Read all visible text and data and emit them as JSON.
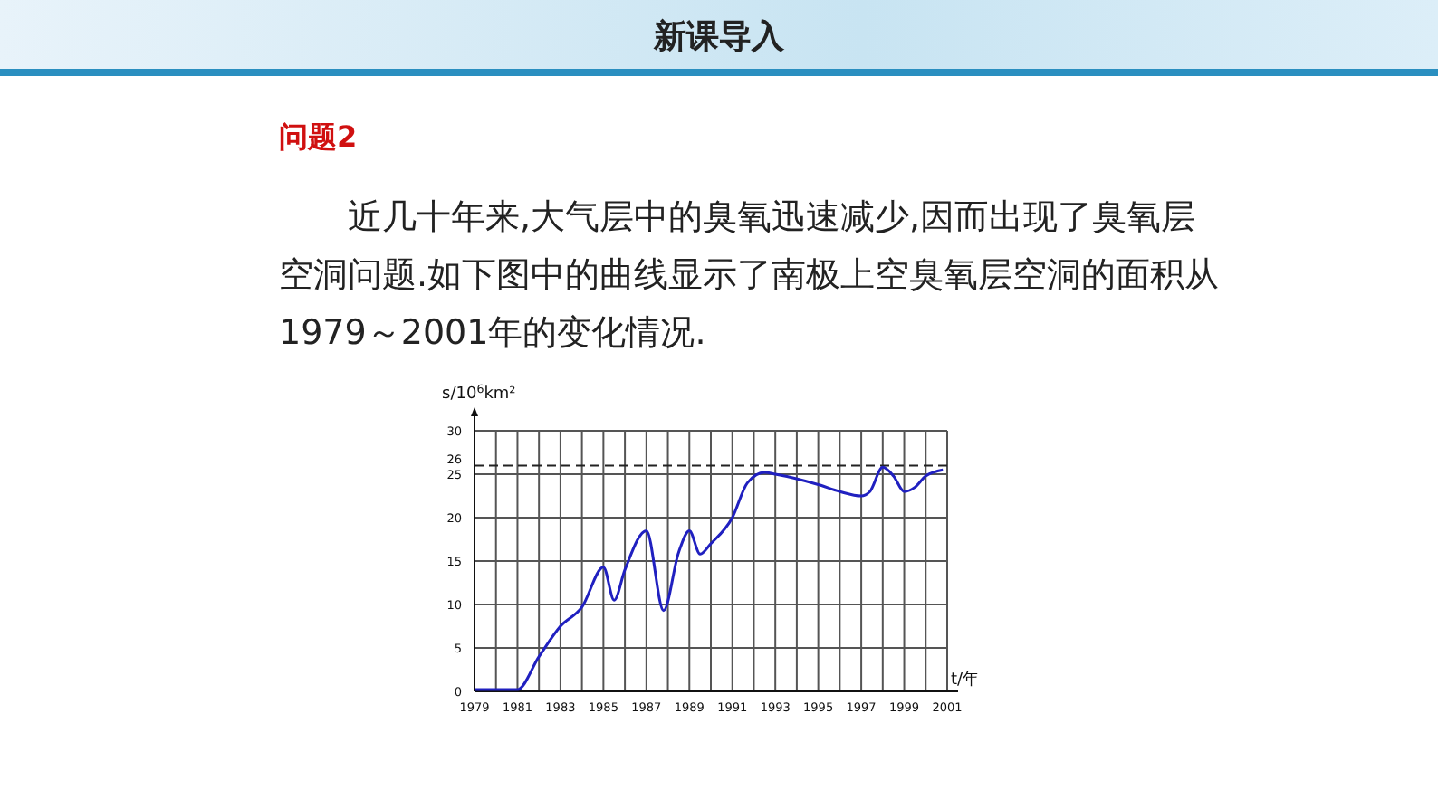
{
  "chart_data": {
    "type": "line",
    "title": "新课导入",
    "subtitle": "问题2",
    "annotations": [
      "近几十年来,大气层中的臭氧迅速减少,因而出现了臭氧层空洞问题.如下图中的曲线显示了南极上空臭氧层空洞的面积从1979～2001年的变化情况."
    ],
    "xlabel": "t/年",
    "ylabel": "s/10$^{6}$km²",
    "series": [
      {
        "color": "#2020c0",
        "x": [
          1979,
          1981,
          1982,
          1983,
          1984,
          1985,
          1985.5,
          1986,
          1987,
          1987.8,
          1988.5,
          1989,
          1989.5,
          1990,
          1991,
          1991.7,
          1992.5,
          1993,
          1995,
          1996,
          1997,
          1997.4,
          1998,
          1998.5,
          1999,
          1999.5,
          2000,
          2000.8
        ],
        "values": [
          0.2,
          0.2,
          4,
          7.5,
          9.7,
          14.3,
          10.5,
          14,
          18.5,
          9.3,
          16,
          18.5,
          15.8,
          17,
          20,
          24,
          25.2,
          25,
          23.8,
          23,
          22.5,
          23,
          25.8,
          24.8,
          23,
          23.5,
          24.8,
          25.5
        ]
      }
    ],
    "xlim": [
      1979,
      2001
    ],
    "xticks": [
      1979,
      {
        "value": 1980,
        "label": null
      },
      1981,
      {
        "value": 1982,
        "label": null
      },
      1983,
      {
        "value": 1984,
        "label": null
      },
      1985,
      {
        "value": 1986,
        "label": null
      },
      1987,
      {
        "value": 1988,
        "label": null
      },
      1989,
      {
        "value": 1990,
        "label": null
      },
      1991,
      {
        "value": 1992,
        "label": null
      },
      1993,
      {
        "value": 1994,
        "label": null
      },
      1995,
      {
        "value": 1996,
        "label": null
      },
      1997,
      {
        "value": 1998,
        "label": null
      },
      1999,
      {
        "value": 2000,
        "label": null
      },
      2001
    ],
    "ylim": [
      0,
      30
    ],
    "yticks": [
      0,
      5,
      10,
      15,
      20,
      25,
      30
    ],
    "ref_lines": [
      {
        "axis": "y",
        "value": 26,
        "label": "26",
        "line_style": "dashed"
      }
    ],
    "grid": true,
    "line_style": "solid",
    "marker": "none"
  }
}
